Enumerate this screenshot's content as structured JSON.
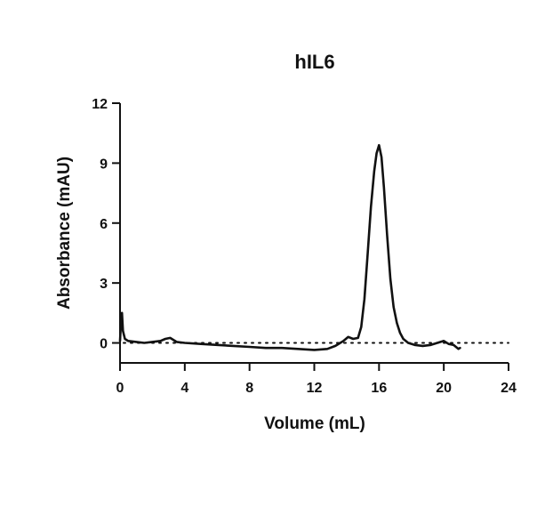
{
  "chart_data": {
    "type": "line",
    "title": "hIL6",
    "xlabel": "Volume (mL)",
    "ylabel": "Absorbance (mAU)",
    "xlim": [
      0,
      24
    ],
    "ylim": [
      -1,
      12
    ],
    "x_ticks": [
      "0",
      "4",
      "8",
      "12",
      "16",
      "20",
      "24"
    ],
    "y_ticks": [
      "0",
      "3",
      "6",
      "9",
      "12"
    ],
    "grid": false,
    "legend": "none",
    "baseline": {
      "y": 0,
      "x_range": [
        0,
        24
      ],
      "style": "dotted"
    },
    "series": [
      {
        "x": [
          0,
          0.05,
          0.12,
          0.18,
          0.3,
          0.5,
          1.0,
          1.5,
          2.0,
          2.5,
          2.8,
          3.1,
          3.5,
          4.0,
          5.0,
          6.0,
          7.0,
          8.0,
          9.0,
          10.0,
          11.0,
          12.0,
          12.8,
          13.3,
          13.8,
          14.1,
          14.4,
          14.7,
          14.9,
          15.1,
          15.3,
          15.5,
          15.7,
          15.85,
          16.0,
          16.15,
          16.3,
          16.5,
          16.7,
          16.9,
          17.1,
          17.3,
          17.5,
          17.8,
          18.2,
          18.7,
          19.2,
          19.6,
          20.0,
          20.3,
          20.6,
          20.9,
          21.0
        ],
        "y": [
          0.1,
          0.9,
          1.5,
          0.6,
          0.2,
          0.1,
          0.05,
          0.0,
          0.05,
          0.1,
          0.2,
          0.25,
          0.05,
          0.0,
          -0.05,
          -0.1,
          -0.15,
          -0.2,
          -0.25,
          -0.25,
          -0.3,
          -0.35,
          -0.3,
          -0.15,
          0.1,
          0.3,
          0.2,
          0.25,
          0.8,
          2.2,
          4.5,
          6.8,
          8.6,
          9.5,
          9.9,
          9.3,
          7.8,
          5.4,
          3.2,
          1.8,
          1.0,
          0.5,
          0.2,
          0.0,
          -0.1,
          -0.15,
          -0.1,
          0.0,
          0.1,
          -0.05,
          -0.1,
          -0.3,
          -0.25
        ]
      }
    ]
  }
}
